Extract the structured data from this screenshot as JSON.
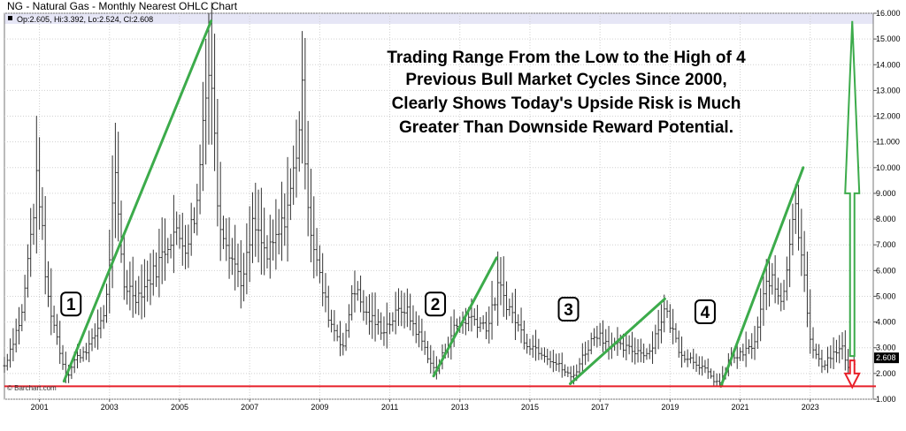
{
  "header": {
    "title": "NG - Natural Gas - Monthly Nearest OHLC Chart",
    "info": "Op:2.605, Hi:3.392, Lo:2.524, Cl:2.608"
  },
  "watermark": "© Barchart.com",
  "annotation_lines": [
    "Trading Range From the Low to the High of 4",
    "Previous Bull Market Cycles Since 2000,",
    "Clearly Shows Today's Upside Risk is Much",
    "Greater Than Downside Reward Potential."
  ],
  "colors": {
    "bars": "#333333",
    "trend": "#3cab4b",
    "support": "#e8202a",
    "header_band": "#e6e6f6",
    "last_label_bg": "#000000"
  },
  "chart_data": {
    "type": "ohlc",
    "title": "NG - Natural Gas - Monthly Nearest OHLC Chart",
    "frequency": "monthly",
    "x_range": [
      2000.0,
      2024.8
    ],
    "ylim": [
      1.0,
      16.0
    ],
    "y_ticks": [
      "16.000",
      "15.000",
      "14.000",
      "13.000",
      "12.000",
      "11.000",
      "10.000",
      "9.000",
      "8.000",
      "7.000",
      "6.000",
      "5.000",
      "4.000",
      "3.000",
      "2.000",
      "1.000"
    ],
    "x_ticks": [
      "2001",
      "2003",
      "2005",
      "2007",
      "2009",
      "2011",
      "2013",
      "2015",
      "2017",
      "2019",
      "2021",
      "2023"
    ],
    "last": {
      "label": "2.608",
      "open": 2.605,
      "high": 3.392,
      "low": 2.524,
      "close": 2.608
    },
    "support_level": 1.5,
    "price_path": [
      [
        2000.0,
        2.3
      ],
      [
        2000.5,
        4.3
      ],
      [
        2000.95,
        9.8
      ],
      [
        2001.2,
        5.2
      ],
      [
        2001.7,
        2.2
      ],
      [
        2001.8,
        1.9
      ],
      [
        2002.0,
        2.5
      ],
      [
        2002.5,
        3.2
      ],
      [
        2002.9,
        4.6
      ],
      [
        2003.15,
        9.6
      ],
      [
        2003.4,
        5.5
      ],
      [
        2003.8,
        5.0
      ],
      [
        2004.3,
        6.0
      ],
      [
        2004.8,
        7.5
      ],
      [
        2005.2,
        7.0
      ],
      [
        2005.5,
        8.6
      ],
      [
        2005.75,
        13.5
      ],
      [
        2005.9,
        13.8
      ],
      [
        2006.1,
        8.3
      ],
      [
        2006.5,
        6.5
      ],
      [
        2006.8,
        5.5
      ],
      [
        2007.1,
        7.8
      ],
      [
        2007.5,
        6.5
      ],
      [
        2007.9,
        7.6
      ],
      [
        2008.2,
        9.2
      ],
      [
        2008.5,
        12.7
      ],
      [
        2008.7,
        8.0
      ],
      [
        2009.0,
        5.7
      ],
      [
        2009.3,
        4.0
      ],
      [
        2009.7,
        3.0
      ],
      [
        2009.95,
        5.5
      ],
      [
        2010.3,
        4.3
      ],
      [
        2010.8,
        3.7
      ],
      [
        2011.4,
        4.6
      ],
      [
        2011.9,
        3.3
      ],
      [
        2012.3,
        2.0
      ],
      [
        2012.8,
        3.7
      ],
      [
        2013.3,
        4.2
      ],
      [
        2013.8,
        3.8
      ],
      [
        2014.1,
        5.4
      ],
      [
        2014.5,
        4.3
      ],
      [
        2014.9,
        3.2
      ],
      [
        2015.4,
        2.8
      ],
      [
        2015.9,
        2.2
      ],
      [
        2016.2,
        1.8
      ],
      [
        2016.6,
        2.9
      ],
      [
        2016.9,
        3.6
      ],
      [
        2017.3,
        3.1
      ],
      [
        2017.9,
        2.9
      ],
      [
        2018.4,
        2.8
      ],
      [
        2018.85,
        4.5
      ],
      [
        2019.3,
        2.8
      ],
      [
        2019.8,
        2.4
      ],
      [
        2020.2,
        1.8
      ],
      [
        2020.45,
        1.6
      ],
      [
        2020.7,
        2.6
      ],
      [
        2021.0,
        2.7
      ],
      [
        2021.4,
        3.1
      ],
      [
        2021.8,
        5.8
      ],
      [
        2022.2,
        4.8
      ],
      [
        2022.55,
        8.7
      ],
      [
        2022.8,
        6.5
      ],
      [
        2023.0,
        3.2
      ],
      [
        2023.3,
        2.3
      ],
      [
        2023.6,
        2.7
      ],
      [
        2023.9,
        3.0
      ],
      [
        2024.1,
        2.1
      ],
      [
        2024.3,
        2.6
      ]
    ],
    "trend_lines": [
      {
        "label": "1",
        "from": [
          2001.7,
          1.7
        ],
        "to": [
          2005.9,
          15.7
        ]
      },
      {
        "label": "2",
        "from": [
          2012.25,
          1.9
        ],
        "to": [
          2014.05,
          6.5
        ]
      },
      {
        "label": "3",
        "from": [
          2016.15,
          1.6
        ],
        "to": [
          2018.85,
          4.9
        ]
      },
      {
        "label": "4",
        "from": [
          2020.45,
          1.5
        ],
        "to": [
          2022.8,
          10.0
        ]
      }
    ],
    "badges": [
      {
        "label": "1",
        "x": 2001.9,
        "y": 4.7
      },
      {
        "label": "2",
        "x": 2012.3,
        "y": 4.7
      },
      {
        "label": "3",
        "x": 2016.1,
        "y": 4.5
      },
      {
        "label": "4",
        "x": 2020.0,
        "y": 4.4
      }
    ],
    "projection_arrows": [
      {
        "direction": "up",
        "from": 2.608,
        "to": 15.7,
        "x": 2024.2
      },
      {
        "direction": "down",
        "from": 2.608,
        "to": 1.5,
        "x": 2024.2
      }
    ]
  }
}
